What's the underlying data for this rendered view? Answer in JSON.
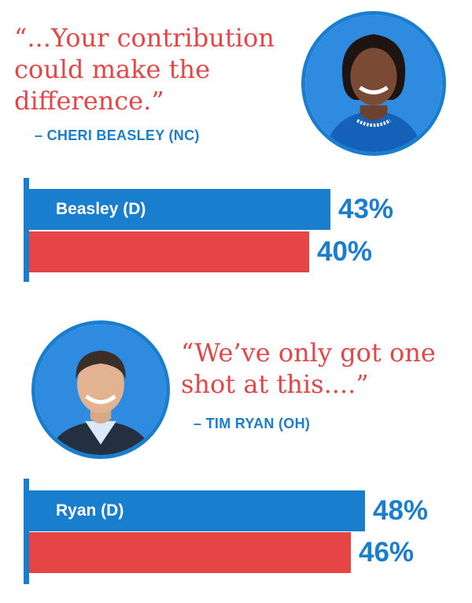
{
  "colors": {
    "blue": "#1a7ecf",
    "red": "#e64545",
    "accent_blue": "#1a7ecf",
    "value_blue": "#1a7ecf"
  },
  "sections": [
    {
      "quote": "“...Your contribution\ncould make the\ndifference.”",
      "attribution": "– CHERI BEASLEY (NC)",
      "portrait_icon": "candidate-portrait-woman"
    },
    {
      "quote": "“We’ve only got one\nshot at this....”",
      "attribution": "– TIM RYAN (OH)",
      "portrait_icon": "candidate-portrait-man"
    }
  ],
  "chart_data": [
    {
      "type": "bar",
      "orientation": "horizontal",
      "categories": [
        "Beasley (D)",
        ""
      ],
      "values": [
        43,
        40
      ],
      "value_labels": [
        "43%",
        "40%"
      ],
      "xlim": [
        0,
        60
      ]
    },
    {
      "type": "bar",
      "orientation": "horizontal",
      "categories": [
        "Ryan (D)",
        ""
      ],
      "values": [
        48,
        46
      ],
      "value_labels": [
        "48%",
        "46%"
      ],
      "xlim": [
        0,
        60
      ]
    }
  ]
}
